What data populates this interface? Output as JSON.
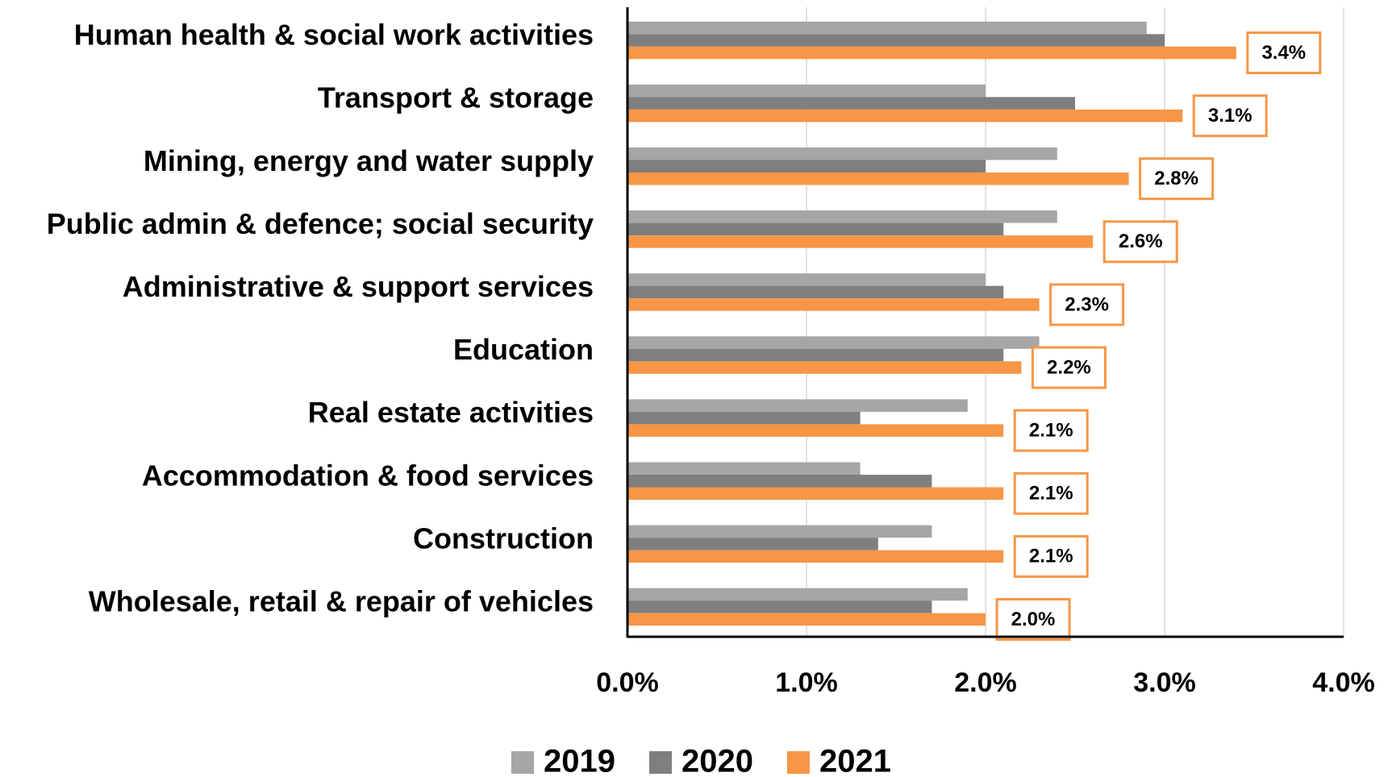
{
  "chart_data": {
    "type": "hbar",
    "categories": [
      "Human health & social work activities",
      "Transport & storage",
      "Mining, energy and water supply",
      "Public admin & defence; social security",
      "Administrative & support services",
      "Education",
      "Real estate activities",
      "Accommodation & food services",
      "Construction",
      "Wholesale, retail & repair of vehicles"
    ],
    "series": [
      {
        "name": "2019",
        "color": "#a6a6a6",
        "values": [
          2.9,
          2.0,
          2.4,
          2.4,
          2.0,
          2.3,
          1.9,
          1.3,
          1.7,
          1.9
        ]
      },
      {
        "name": "2020",
        "color": "#7f7f7f",
        "values": [
          3.0,
          2.5,
          2.0,
          2.1,
          2.1,
          2.1,
          1.3,
          1.7,
          1.4,
          1.7
        ]
      },
      {
        "name": "2021",
        "color": "#f79646",
        "values": [
          3.4,
          3.1,
          2.8,
          2.6,
          2.3,
          2.2,
          2.1,
          2.1,
          2.1,
          2.0
        ],
        "value_labels": [
          "3.4%",
          "3.1%",
          "2.8%",
          "2.6%",
          "2.3%",
          "2.2%",
          "2.1%",
          "2.1%",
          "2.1%",
          "2.0%"
        ]
      }
    ],
    "xlim": [
      0,
      4
    ],
    "xticks": [
      {
        "value": 0,
        "label": "0.0%"
      },
      {
        "value": 1,
        "label": "1.0%"
      },
      {
        "value": 2,
        "label": "2.0%"
      },
      {
        "value": 3,
        "label": "3.0%"
      },
      {
        "value": 4,
        "label": "4.0%"
      }
    ],
    "grid": true,
    "legend": "bottom"
  }
}
